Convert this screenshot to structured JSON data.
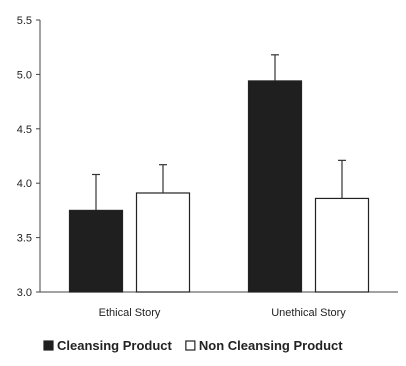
{
  "chart_data": {
    "type": "bar",
    "categories": [
      "Ethical Story",
      "Unethical Story"
    ],
    "series": [
      {
        "name": "Cleansing Product",
        "values": [
          3.75,
          4.94
        ],
        "errors": [
          0.33,
          0.24
        ],
        "color": "#1f1f1f"
      },
      {
        "name": "Non Cleansing Product",
        "values": [
          3.91,
          3.86
        ],
        "errors": [
          0.26,
          0.35
        ],
        "color": "#ffffff"
      }
    ],
    "ylim": [
      3.0,
      5.5
    ],
    "yticks": [
      "3.0",
      "3.5",
      "4.0",
      "4.5",
      "5.0",
      "5.5"
    ],
    "title": "",
    "xlabel": "",
    "ylabel": "",
    "legend_position": "bottom",
    "grid": false
  }
}
